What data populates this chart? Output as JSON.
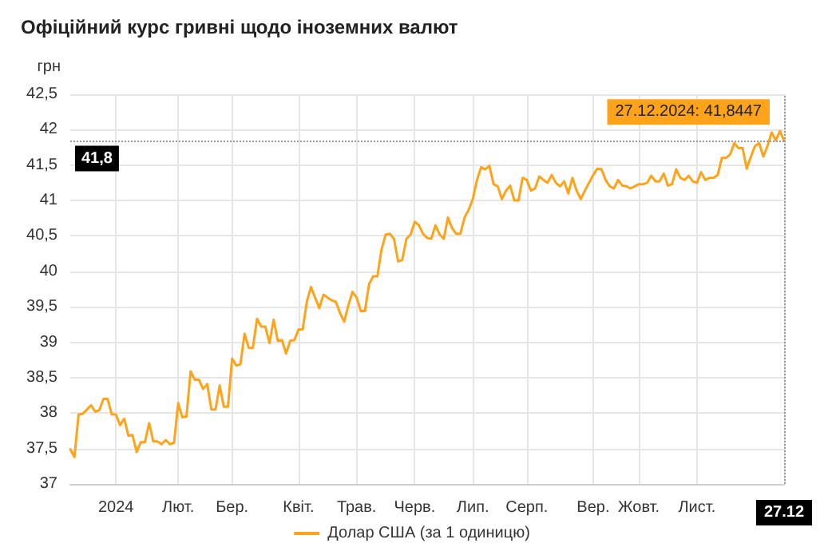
{
  "chart_data": {
    "type": "line",
    "title": "Офіційний курс гривні щодо іноземних валют",
    "ylabel": "грн",
    "categories": [
      null,
      null,
      null,
      null,
      null,
      null,
      null,
      null,
      null,
      null,
      null,
      "2024",
      null,
      null,
      null,
      null,
      null,
      null,
      null,
      null,
      null,
      null,
      null,
      null,
      null,
      null,
      "Лют.",
      null,
      null,
      null,
      null,
      null,
      null,
      null,
      null,
      null,
      null,
      null,
      null,
      "Бер.",
      null,
      null,
      null,
      null,
      null,
      null,
      null,
      null,
      null,
      null,
      null,
      null,
      null,
      null,
      null,
      "Квіт.",
      null,
      null,
      null,
      null,
      null,
      null,
      null,
      null,
      null,
      null,
      null,
      null,
      null,
      "Трав.",
      null,
      null,
      null,
      null,
      null,
      null,
      null,
      null,
      null,
      null,
      null,
      null,
      null,
      "Черв.",
      null,
      null,
      null,
      null,
      null,
      null,
      null,
      null,
      null,
      null,
      null,
      null,
      null,
      "Лип.",
      null,
      null,
      null,
      null,
      null,
      null,
      null,
      null,
      null,
      null,
      null,
      null,
      "Серп.",
      null,
      null,
      null,
      null,
      null,
      null,
      null,
      null,
      null,
      null,
      null,
      null,
      null,
      null,
      null,
      "Вер.",
      null,
      null,
      null,
      null,
      null,
      null,
      null,
      null,
      null,
      null,
      "Жовт.",
      null,
      null,
      null,
      null,
      null,
      null,
      null,
      null,
      null,
      null,
      null,
      null,
      null,
      "Лист.",
      null,
      null,
      null,
      null,
      null,
      null,
      null,
      null,
      null,
      null,
      null,
      null,
      null,
      null,
      null,
      null,
      null,
      null,
      null,
      null,
      "27.12"
    ],
    "series": [
      {
        "name": "Долар США (за 1 одиницю)",
        "color": "#ffa31a",
        "values": [
          37.49,
          37.38,
          37.98,
          37.99,
          38.05,
          38.11,
          38.02,
          38.04,
          38.2,
          38.2,
          37.98,
          37.98,
          37.83,
          37.92,
          37.68,
          37.69,
          37.45,
          37.59,
          37.59,
          37.86,
          37.6,
          37.6,
          37.56,
          37.62,
          37.56,
          37.58,
          38.14,
          37.94,
          37.95,
          38.59,
          38.47,
          38.47,
          38.34,
          38.41,
          38.05,
          38.05,
          38.39,
          38.09,
          38.09,
          38.77,
          38.67,
          38.69,
          39.12,
          38.92,
          38.92,
          39.33,
          39.22,
          39.22,
          38.99,
          39.32,
          39.02,
          39.03,
          38.84,
          39.02,
          39.03,
          39.18,
          39.18,
          39.57,
          39.78,
          39.63,
          39.48,
          39.67,
          39.63,
          39.59,
          39.57,
          39.41,
          39.29,
          39.52,
          39.71,
          39.63,
          39.44,
          39.44,
          39.82,
          39.93,
          39.93,
          40.31,
          40.52,
          40.53,
          40.46,
          40.14,
          40.16,
          40.46,
          40.52,
          40.7,
          40.65,
          40.53,
          40.47,
          40.46,
          40.65,
          40.52,
          40.46,
          40.76,
          40.61,
          40.53,
          40.53,
          40.76,
          40.87,
          41.02,
          41.29,
          41.47,
          41.44,
          41.49,
          41.23,
          41.2,
          41.02,
          41.14,
          41.21,
          41.0,
          41.0,
          41.32,
          41.29,
          41.14,
          41.17,
          41.34,
          41.29,
          41.25,
          41.36,
          41.25,
          41.2,
          41.27,
          41.1,
          41.32,
          41.14,
          41.02,
          41.14,
          41.25,
          41.36,
          41.45,
          41.44,
          41.29,
          41.2,
          41.17,
          41.29,
          41.21,
          41.2,
          41.17,
          41.2,
          41.23,
          41.23,
          41.25,
          41.35,
          41.27,
          41.27,
          41.38,
          41.21,
          41.23,
          41.44,
          41.32,
          41.29,
          41.35,
          41.27,
          41.25,
          41.4,
          41.29,
          41.32,
          41.32,
          41.36,
          41.6,
          41.6,
          41.65,
          41.81,
          41.74,
          41.74,
          41.45,
          41.62,
          41.77,
          41.81,
          41.62,
          41.77,
          41.96,
          41.85,
          41.98,
          41.8447
        ]
      }
    ],
    "ylim": [
      37,
      42.5
    ],
    "yticks": [
      37,
      {
        "value": 37.5,
        "label": "37,5"
      },
      38,
      {
        "value": 38.5,
        "label": "38,5"
      },
      39,
      {
        "value": 39.5,
        "label": "39,5"
      },
      40,
      {
        "value": 40.5,
        "label": "40,5"
      },
      41,
      {
        "value": 41.5,
        "label": "41,5"
      },
      42,
      {
        "value": 42.5,
        "label": "42,5"
      }
    ],
    "ref_lines": [
      {
        "axis": "y",
        "value": 41.8447,
        "label": "41,8",
        "line_style": "dotted"
      },
      {
        "axis": "x",
        "value": "27.12",
        "line_style": "dotted"
      }
    ],
    "annotations": [
      {
        "text": "27.12.2024: 41,8447",
        "x": "27.12",
        "y": 41.8447
      }
    ],
    "grid": true,
    "legend": "bottom",
    "marker": "none",
    "line_style": "solid"
  }
}
